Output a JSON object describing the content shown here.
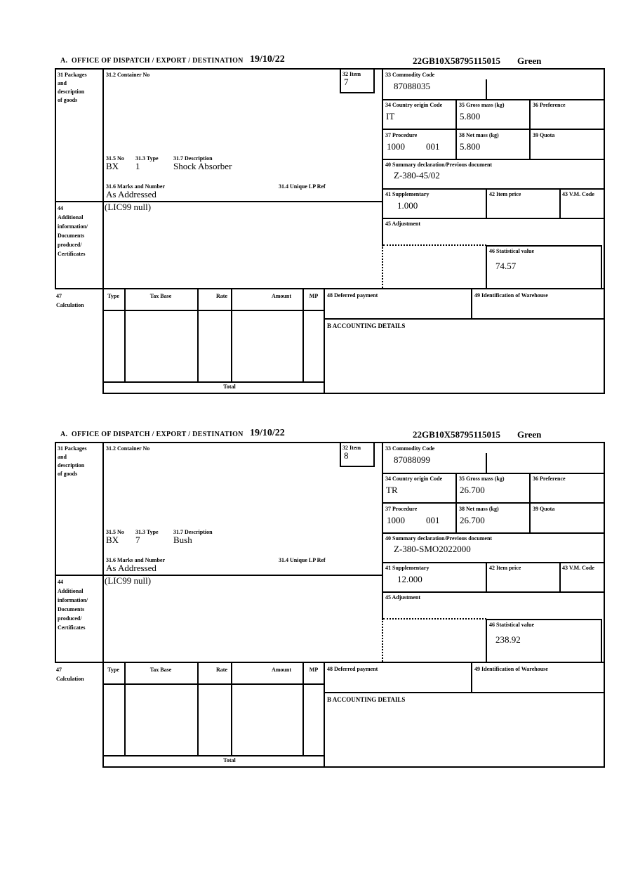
{
  "labels": {
    "office_title": "A.  OFFICE OF DISPATCH / EXPORT / DESTINATION",
    "box31": "31 Packages\nand\ndescription\nof goods",
    "box31_2": "31.2 Container No",
    "box32": "32 Item",
    "box33": "33 Commodity Code",
    "box34": "34 Country origin Code",
    "box35": "35 Gross mass (kg)",
    "box36": "36 Preference",
    "box37": "37 Procedure",
    "box38": "38 Net mass (kg)",
    "box39": "39 Quota",
    "box31_5": "31.5 No",
    "box31_3": "31.3 Type",
    "box31_7": "31.7 Description",
    "box31_6": "31.6 Marks and Number",
    "box31_4": "31.4 Unique LP Ref",
    "box40": "40 Summary declaration/Previous document",
    "box41": "41 Supplementary",
    "box42": "42 Item price",
    "box43": "43 V.M. Code",
    "box44": "44\nAdditional\ninformation/\nDocuments\nproduced/\nCertificates",
    "box45": "45 Adjustment",
    "box46": "46 Statistical value",
    "box47": "47\nCalculation",
    "box48": "48 Deferred payment",
    "box49": "49 Identification of Warehouse",
    "boxB": "B ACCOUNTING DETAILS",
    "col_type": "Type",
    "col_tax_base": "Tax Base",
    "col_rate": "Rate",
    "col_amount": "Amount",
    "col_mp": "MP",
    "total": "Total"
  },
  "forms": [
    {
      "date": "19/10/22",
      "mrn": "22GB10X58795115015",
      "status": "Green",
      "item": "7",
      "commodity_code": "87088035",
      "country_origin": "IT",
      "gross_mass": "5.800",
      "procedure": "1000",
      "procedure_2": "001",
      "net_mass": "5.800",
      "package_no": "BX",
      "package_type": "1",
      "description": "Shock Absorber",
      "marks": "As Addressed",
      "previous_document": "Z-380-45/02",
      "supplementary": "1.000",
      "additional_information": "(LIC99 null)",
      "statistical_value": "74.57"
    },
    {
      "date": "19/10/22",
      "mrn": "22GB10X58795115015",
      "status": "Green",
      "item": "8",
      "commodity_code": "87088099",
      "country_origin": "TR",
      "gross_mass": "26.700",
      "procedure": "1000",
      "procedure_2": "001",
      "net_mass": "26.700",
      "package_no": "BX",
      "package_type": "7",
      "description": "Bush",
      "marks": "As Addressed",
      "previous_document": "Z-380-SMO2022000",
      "supplementary": "12.000",
      "additional_information": "(LIC99 null)",
      "statistical_value": "238.92"
    }
  ]
}
